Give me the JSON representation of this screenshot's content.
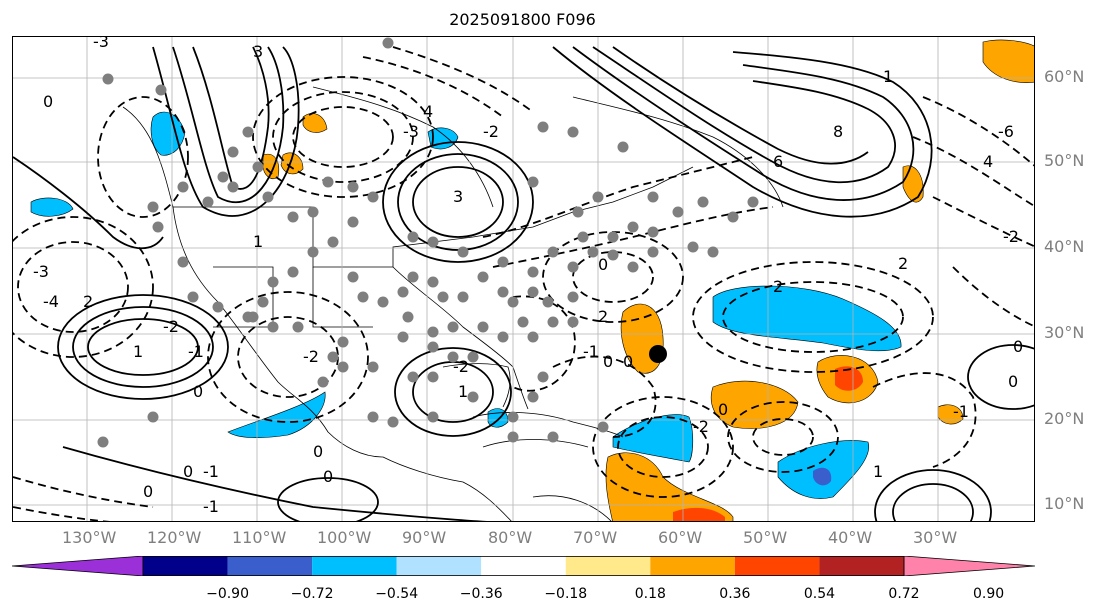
{
  "title": "2025091800 F096",
  "lon_labels": [
    "130°W",
    "120°W",
    "110°W",
    "100°W",
    "90°W",
    "80°W",
    "70°W",
    "60°W",
    "50°W",
    "40°W",
    "30°W"
  ],
  "lat_labels": [
    "60°N",
    "50°N",
    "40°N",
    "30°N",
    "20°N",
    "10°N"
  ],
  "contour_labels": [
    "3",
    "4",
    "-2",
    "1",
    "3",
    "8",
    "6",
    "-3",
    "-6",
    "4",
    "-2",
    "0",
    "2",
    "-3",
    "-4",
    "-3",
    "-2",
    "2",
    "1",
    "0",
    "-2",
    "0",
    "2",
    "-2",
    "1",
    "0",
    "-1",
    "0",
    "-2",
    "1",
    "0",
    "0",
    "-1",
    "0",
    "-1",
    "0",
    "1",
    "0",
    "-1",
    "0",
    "2",
    "-1",
    "0"
  ],
  "colorbar": {
    "ticks": [
      "−0.90",
      "−0.72",
      "−0.54",
      "−0.36",
      "−0.18",
      "0.18",
      "0.36",
      "0.54",
      "0.72",
      "0.90"
    ],
    "colors": {
      "under": "#9b30d9",
      "bins": [
        "#9b30d9",
        "#00008b",
        "#3a5fcd",
        "#00bfff",
        "#b0e2ff",
        "#ffffff",
        "#ffe98a",
        "#ffa500",
        "#ff4500",
        "#b22222",
        "#ff82ab"
      ],
      "over": "#ff82ab"
    }
  },
  "markers": {
    "gray_dot_color": "#7f7f7f",
    "black_dot_color": "#000000"
  }
}
